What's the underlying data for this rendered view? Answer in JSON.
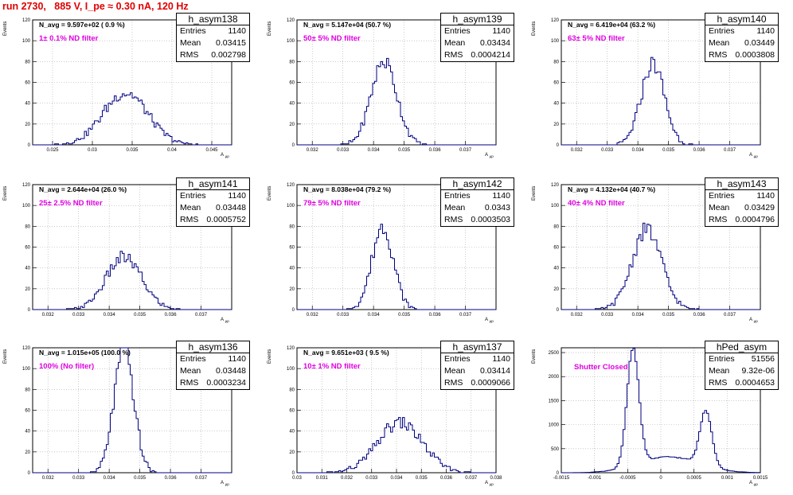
{
  "run_title": "run 2730,   885 V, I_pe ≈ 0.30 nA, 120 Hz",
  "stat_labels": {
    "entries": "Entries",
    "mean": "Mean",
    "rms": "RMS"
  },
  "line_color": "#000080",
  "annotation_color": "#e000e0",
  "chart_data": [
    {
      "type": "bar",
      "title": "h_asym138",
      "ylabel": "Events",
      "xlabel": "A_{μp}",
      "n_avg": "N_avg = 9.597e+02 ( 0.9 %)",
      "filter": "1± 0.1% ND filter",
      "entries": "1140",
      "mean": "0.03415",
      "rms": "0.002798",
      "xlim": [
        0.0225,
        0.0475
      ],
      "ylim": [
        0,
        120
      ],
      "xticks": [
        0.025,
        0.03,
        0.035,
        0.04,
        0.045
      ],
      "xtick_labels": [
        "0.025",
        "0.03",
        "0.035",
        "0.04",
        "0.045"
      ],
      "yticks": [
        0,
        20,
        40,
        60,
        80,
        100,
        120
      ],
      "ytick_labels": [
        "0",
        "20",
        "40",
        "60",
        "80",
        "100",
        "120"
      ],
      "center": 0.03415,
      "sigma": 0.0028,
      "peak": 50
    },
    {
      "type": "bar",
      "title": "h_asym139",
      "ylabel": "Events",
      "xlabel": "A_{μp}",
      "n_avg": "N_avg = 5.147e+04 (50.7 %)",
      "filter": "50± 5% ND filter",
      "entries": "1140",
      "mean": "0.03434",
      "rms": "0.0004214",
      "xlim": [
        0.0315,
        0.038
      ],
      "ylim": [
        0,
        120
      ],
      "xticks": [
        0.032,
        0.033,
        0.034,
        0.035,
        0.036,
        0.037
      ],
      "xtick_labels": [
        "0.032",
        "0.033",
        "0.034",
        "0.035",
        "0.036",
        "0.037"
      ],
      "yticks": [
        0,
        20,
        40,
        60,
        80,
        100,
        120
      ],
      "ytick_labels": [
        "0",
        "20",
        "40",
        "60",
        "80",
        "100",
        "120"
      ],
      "center": 0.03434,
      "sigma": 0.00042,
      "peak": 80
    },
    {
      "type": "bar",
      "title": "h_asym140",
      "ylabel": "Events",
      "xlabel": "A_{μp}",
      "n_avg": "N_avg = 6.419e+04 (63.2 %)",
      "filter": "63± 5% ND filter",
      "entries": "1140",
      "mean": "0.03449",
      "rms": "0.0003808",
      "xlim": [
        0.0315,
        0.038
      ],
      "ylim": [
        0,
        120
      ],
      "xticks": [
        0.032,
        0.033,
        0.034,
        0.035,
        0.036,
        0.037
      ],
      "xtick_labels": [
        "0.032",
        "0.033",
        "0.034",
        "0.035",
        "0.036",
        "0.037"
      ],
      "yticks": [
        0,
        20,
        40,
        60,
        80,
        100,
        120
      ],
      "ytick_labels": [
        "0",
        "20",
        "40",
        "60",
        "80",
        "100",
        "120"
      ],
      "center": 0.03449,
      "sigma": 0.00038,
      "peak": 78
    },
    {
      "type": "bar",
      "title": "h_asym141",
      "ylabel": "Events",
      "xlabel": "A_{μp}",
      "n_avg": "N_avg = 2.644e+04 (26.0 %)",
      "filter": "25± 2.5% ND filter",
      "entries": "1140",
      "mean": "0.03448",
      "rms": "0.0005752",
      "xlim": [
        0.0315,
        0.038
      ],
      "ylim": [
        0,
        120
      ],
      "xticks": [
        0.032,
        0.033,
        0.034,
        0.035,
        0.036,
        0.037
      ],
      "xtick_labels": [
        "0.032",
        "0.033",
        "0.034",
        "0.035",
        "0.036",
        "0.037"
      ],
      "yticks": [
        0,
        20,
        40,
        60,
        80,
        100,
        120
      ],
      "ytick_labels": [
        "0",
        "20",
        "40",
        "60",
        "80",
        "100",
        "120"
      ],
      "center": 0.03448,
      "sigma": 0.00058,
      "peak": 50
    },
    {
      "type": "bar",
      "title": "h_asym142",
      "ylabel": "Events",
      "xlabel": "A_{μp}",
      "n_avg": "N_avg = 8.038e+04 (79.2 %)",
      "filter": "79± 5% ND filter",
      "entries": "1140",
      "mean": "0.0343",
      "rms": "0.0003503",
      "xlim": [
        0.0315,
        0.038
      ],
      "ylim": [
        0,
        120
      ],
      "xticks": [
        0.032,
        0.033,
        0.034,
        0.035,
        0.036,
        0.037
      ],
      "xtick_labels": [
        "0.032",
        "0.033",
        "0.034",
        "0.035",
        "0.036",
        "0.037"
      ],
      "yticks": [
        0,
        20,
        40,
        60,
        80,
        100,
        120
      ],
      "ytick_labels": [
        "0",
        "20",
        "40",
        "60",
        "80",
        "100",
        "120"
      ],
      "center": 0.0343,
      "sigma": 0.00035,
      "peak": 80
    },
    {
      "type": "bar",
      "title": "h_asym143",
      "ylabel": "Events",
      "xlabel": "A_{μp}",
      "n_avg": "N_avg = 4.132e+04 (40.7 %)",
      "filter": "40± 4% ND filter",
      "entries": "1140",
      "mean": "0.03429",
      "rms": "0.0004796",
      "xlim": [
        0.0315,
        0.038
      ],
      "ylim": [
        0,
        120
      ],
      "xticks": [
        0.032,
        0.033,
        0.034,
        0.035,
        0.036,
        0.037
      ],
      "xtick_labels": [
        "0.032",
        "0.033",
        "0.034",
        "0.035",
        "0.036",
        "0.037"
      ],
      "yticks": [
        0,
        20,
        40,
        60,
        80,
        100,
        120
      ],
      "ytick_labels": [
        "0",
        "20",
        "40",
        "60",
        "80",
        "100",
        "120"
      ],
      "center": 0.03429,
      "sigma": 0.00048,
      "peak": 77
    },
    {
      "type": "bar",
      "title": "h_asym136",
      "ylabel": "Events",
      "xlabel": "A_{μp}",
      "n_avg": "N_avg = 1.015e+05 (100.0 %)",
      "filter": "100% (No filter)",
      "entries": "1140",
      "mean": "0.03448",
      "rms": "0.0003234",
      "xlim": [
        0.0315,
        0.038
      ],
      "ylim": [
        0,
        120
      ],
      "xticks": [
        0.032,
        0.033,
        0.034,
        0.035,
        0.036,
        0.037
      ],
      "xtick_labels": [
        "0.032",
        "0.033",
        "0.034",
        "0.035",
        "0.036",
        "0.037"
      ],
      "yticks": [
        0,
        20,
        40,
        60,
        80,
        100,
        120
      ],
      "ytick_labels": [
        "0",
        "20",
        "40",
        "60",
        "80",
        "100",
        "120"
      ],
      "center": 0.03448,
      "sigma": 0.00032,
      "peak": 120
    },
    {
      "type": "bar",
      "title": "h_asym137",
      "ylabel": "Events",
      "xlabel": "A_{μp}",
      "n_avg": "N_avg = 9.651e+03 ( 9.5 %)",
      "filter": "10± 1% ND filter",
      "entries": "1140",
      "mean": "0.03414",
      "rms": "0.0009066",
      "xlim": [
        0.03,
        0.038
      ],
      "ylim": [
        0,
        120
      ],
      "xticks": [
        0.03,
        0.031,
        0.032,
        0.033,
        0.034,
        0.035,
        0.036,
        0.037,
        0.038
      ],
      "xtick_labels": [
        "0.03",
        "0.031",
        "0.032",
        "0.033",
        "0.034",
        "0.035",
        "0.036",
        "0.037",
        "0.038"
      ],
      "yticks": [
        0,
        20,
        40,
        60,
        80,
        100,
        120
      ],
      "ytick_labels": [
        "0",
        "20",
        "40",
        "60",
        "80",
        "100",
        "120"
      ],
      "center": 0.03414,
      "sigma": 0.0009,
      "peak": 48
    },
    {
      "type": "bar",
      "title": "hPed_asym",
      "ylabel": "Events",
      "xlabel": "A_{μp}",
      "filter": "Shutter Closed",
      "entries": "51556",
      "mean": "9.32e-06",
      "rms": "0.0004653",
      "xlim": [
        -0.0015,
        0.0015
      ],
      "ylim": [
        0,
        2600
      ],
      "xticks": [
        -0.0015,
        -0.001,
        -0.0005,
        0,
        0.0005,
        0.001,
        0.0015
      ],
      "xtick_labels": [
        "-0.0015",
        "-0.001",
        "-0.0005",
        "0",
        "0.0005",
        "0.001",
        "0.0015"
      ],
      "yticks": [
        0,
        500,
        1000,
        1500,
        2000,
        2500
      ],
      "ytick_labels": [
        "0",
        "500",
        "1000",
        "1500",
        "2000",
        "2500"
      ],
      "bimodal": true,
      "peaks": [
        {
          "center": -0.00042,
          "sigma": 9e-05,
          "peak": 2450
        },
        {
          "center": 0.00068,
          "sigma": 9e-05,
          "peak": 1150
        },
        {
          "center": 0.00012,
          "sigma": 0.00045,
          "peak": 330
        }
      ]
    }
  ]
}
